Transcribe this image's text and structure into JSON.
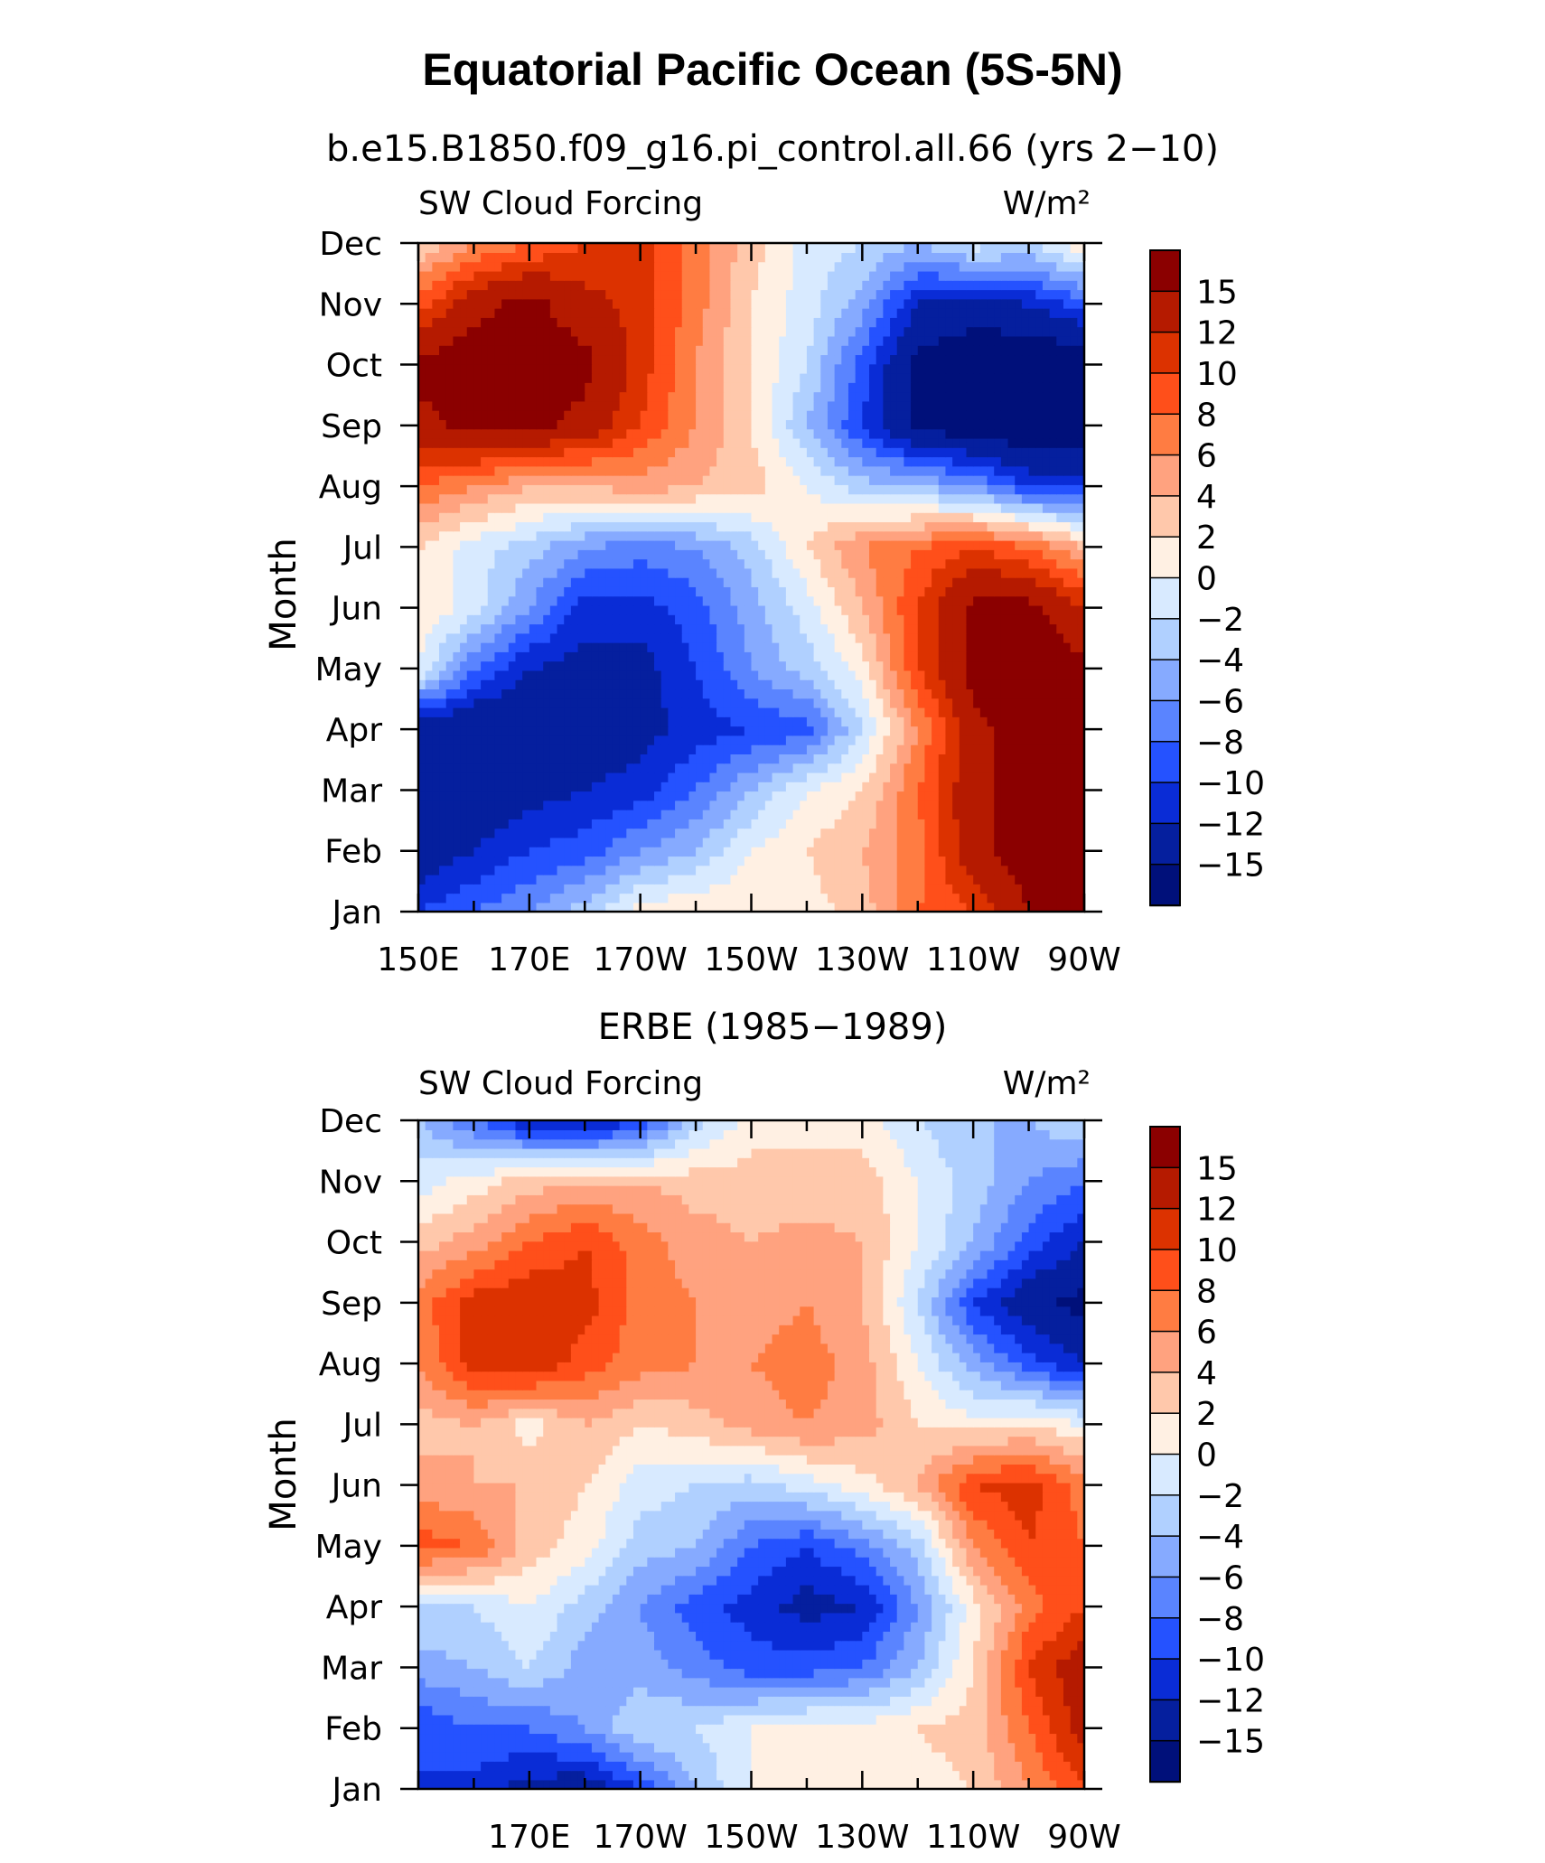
{
  "figure": {
    "title": "Equatorial Pacific Ocean (5S-5N)"
  },
  "colorbar": {
    "levels": [
      "15",
      "12",
      "10",
      "8",
      "6",
      "4",
      "2",
      "0",
      "−2",
      "−4",
      "−6",
      "−8",
      "−10",
      "−12",
      "−15"
    ],
    "colors": [
      "#8b0000",
      "#b51a00",
      "#dc3200",
      "#ff4f1a",
      "#ff7c42",
      "#ffa27f",
      "#ffc8ab",
      "#fff0e3",
      "#d8eaff",
      "#b0d0ff",
      "#86aaff",
      "#5a84ff",
      "#2552ff",
      "#0a2cd6",
      "#051f9e",
      "#00107a"
    ]
  },
  "chart_data": [
    {
      "type": "heatmap",
      "title": "b.e15.B1850.f09_g16.pi_control.all.66 (yrs 2−10)",
      "left_label": "SW Cloud Forcing",
      "right_label": "W/m²",
      "ylabel": "Month",
      "x_ticks": [
        "150E",
        "170E",
        "170W",
        "150W",
        "130W",
        "110W",
        "90W"
      ],
      "y_ticks": [
        "Jan",
        "Feb",
        "Mar",
        "Apr",
        "May",
        "Jun",
        "Jul",
        "Aug",
        "Sep",
        "Oct",
        "Nov",
        "Dec"
      ],
      "xlim": [
        "150E",
        "90W"
      ],
      "units": "W/m²",
      "columns": [
        "150E",
        "160E",
        "170E",
        "180",
        "170W",
        "160W",
        "150W",
        "140W",
        "130W",
        "120W",
        "110W",
        "100W",
        "90W"
      ],
      "values": [
        [
          -10,
          -8,
          -6,
          -3,
          1,
          2,
          2,
          1,
          3,
          8,
          10,
          15,
          18
        ],
        [
          -14,
          -12,
          -10,
          -9,
          -6,
          -4,
          0,
          2,
          4,
          7,
          14,
          17,
          18
        ],
        [
          -14,
          -14,
          -13,
          -12,
          -11,
          -8,
          -4,
          0,
          2,
          8,
          14,
          17,
          18
        ],
        [
          -14,
          -15,
          -15,
          -14,
          -13,
          -11,
          -10,
          -9,
          -2,
          6,
          14,
          17,
          17
        ],
        [
          0,
          -8,
          -12,
          -13,
          -13,
          -10,
          -6,
          -3,
          1,
          10,
          16,
          17,
          16
        ],
        [
          2,
          -1,
          -6,
          -11,
          -11,
          -9,
          -5,
          -1,
          4,
          10,
          16,
          16,
          12
        ],
        [
          2,
          -1,
          -3,
          -6,
          -7,
          -6,
          -3,
          2,
          6,
          8,
          10,
          8,
          4
        ],
        [
          8,
          6,
          4,
          4,
          5,
          4,
          3,
          0,
          -3,
          -4,
          -6,
          -10,
          -10
        ],
        [
          14,
          16,
          16,
          14,
          10,
          6,
          2,
          -4,
          -10,
          -16,
          -17,
          -18,
          -18
        ],
        [
          16,
          17,
          17,
          16,
          11,
          6,
          2,
          -2,
          -9,
          -16,
          -18,
          -18,
          -18
        ],
        [
          9,
          14,
          16,
          13,
          11,
          7,
          2,
          -1,
          -5,
          -12,
          -13,
          -12,
          -9
        ],
        [
          2,
          6,
          8,
          10,
          11,
          7,
          3,
          -1,
          -2,
          -4,
          -1,
          -2,
          2
        ]
      ]
    },
    {
      "type": "heatmap",
      "title": "ERBE (1985−1989)",
      "left_label": "SW Cloud Forcing",
      "right_label": "W/m²",
      "ylabel": "Month",
      "x_ticks": [
        "170E",
        "170W",
        "150W",
        "130W",
        "110W",
        "90W"
      ],
      "y_ticks": [
        "Jan",
        "Feb",
        "Mar",
        "Apr",
        "May",
        "Jun",
        "Jul",
        "Aug",
        "Sep",
        "Oct",
        "Nov",
        "Dec"
      ],
      "xlim": [
        "150E",
        "90W"
      ],
      "units": "W/m²",
      "columns": [
        "150E",
        "160E",
        "170E",
        "180",
        "170W",
        "160W",
        "150W",
        "140W",
        "130W",
        "120W",
        "110W",
        "100W",
        "90W"
      ],
      "values": [
        [
          -10,
          -11,
          -13,
          -14,
          -10,
          -4,
          0,
          1,
          1,
          1,
          2,
          6,
          10
        ],
        [
          -10,
          -8,
          -8,
          -6,
          -2,
          -2,
          0,
          1,
          1,
          2,
          3,
          8,
          13
        ],
        [
          -5,
          -4,
          -2,
          -5,
          -5,
          -7,
          -9,
          -9,
          -8,
          -4,
          2,
          10,
          14
        ],
        [
          -2,
          -2,
          0,
          -3,
          -6,
          -9,
          -11,
          -13,
          -12,
          -6,
          1,
          7,
          10
        ],
        [
          9,
          8,
          3,
          1,
          -3,
          -4,
          -8,
          -10,
          -7,
          -3,
          6,
          10,
          8
        ],
        [
          5,
          4,
          4,
          2,
          -1,
          -2,
          -3,
          -1,
          1,
          4,
          10,
          11,
          7
        ],
        [
          3,
          4,
          1,
          4,
          2,
          3,
          5,
          6,
          5,
          2,
          1,
          2,
          0
        ],
        [
          6,
          11,
          12,
          9,
          7,
          6,
          6,
          7,
          5,
          0,
          -5,
          -9,
          -12
        ],
        [
          7,
          11,
          12,
          11,
          7,
          6,
          5,
          6,
          4,
          -2,
          -10,
          -14,
          -16
        ],
        [
          3,
          5,
          8,
          10,
          7,
          5,
          4,
          5,
          4,
          0,
          -4,
          -9,
          -12
        ],
        [
          -1,
          1,
          3,
          4,
          4,
          3,
          3,
          2,
          3,
          0,
          -3,
          -6,
          -8
        ],
        [
          -4,
          -8,
          -12,
          -13,
          -10,
          -3,
          1,
          2,
          1,
          -2,
          -4,
          -4,
          -2
        ]
      ]
    }
  ]
}
